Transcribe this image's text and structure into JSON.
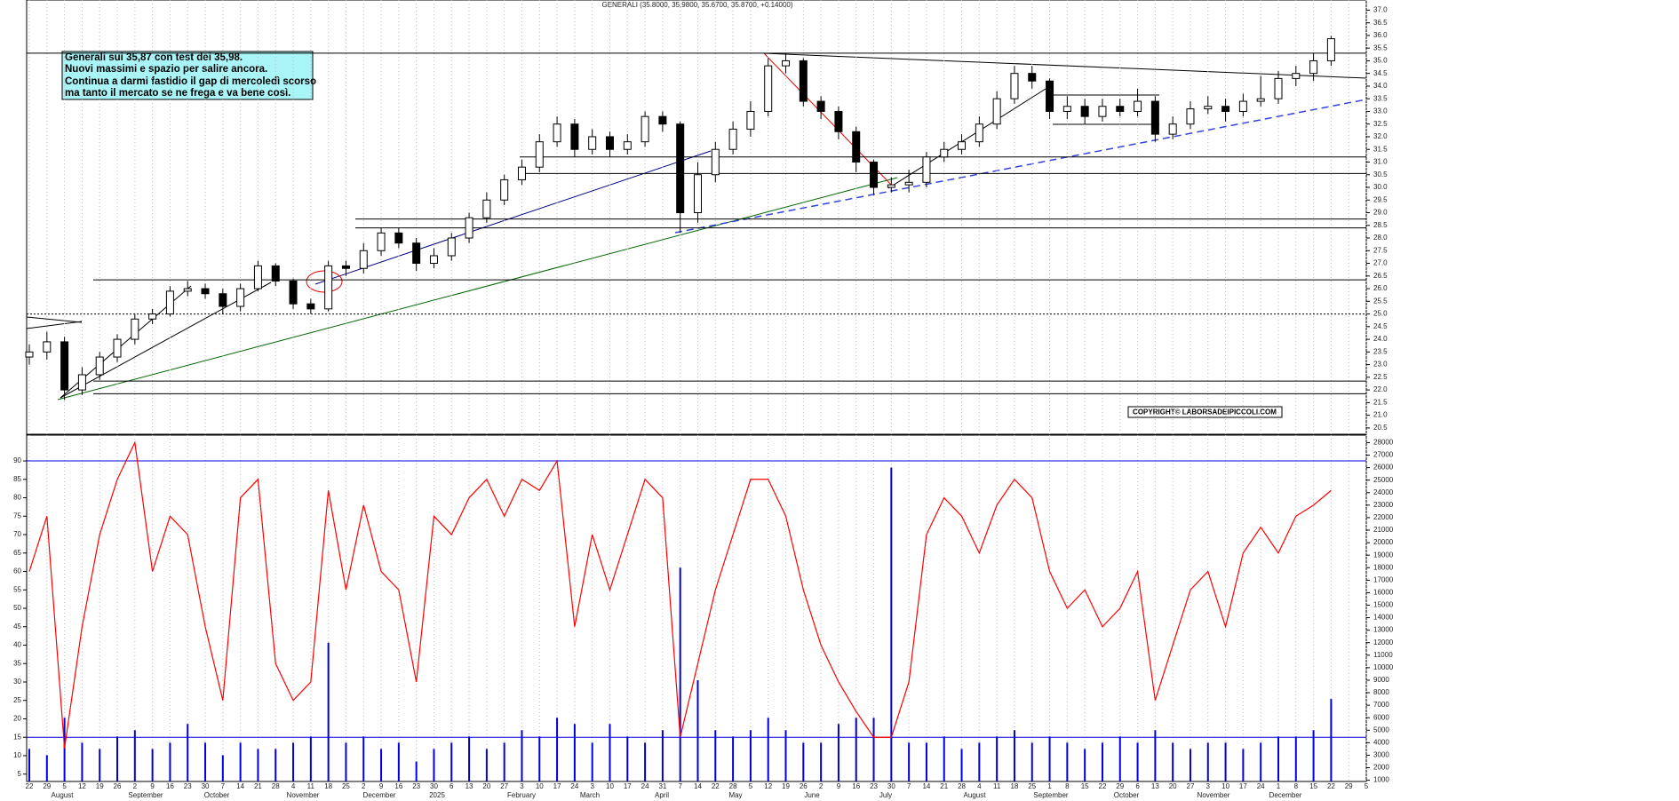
{
  "title": "GENERALI (35.8000, 35.9800, 35.6700, 35.8700, +0.14000)",
  "annotation": [
    "Generali sui 35,87 con test dei 35,98.",
    "Nuovi massimi e spazio per salire ancora.",
    "Continua a darmi fastidio il gap di mercoledì scorso",
    "ma tanto il mercato se ne frega e  va bene così."
  ],
  "copyright": "COPYRIGHT© LABORSADEIPICCOLI.COM",
  "chart_data": [
    {
      "type": "candlestick",
      "color": "#000000",
      "open": [
        23.3,
        23.5,
        23.9,
        22.0,
        22.6,
        23.3,
        24.0,
        24.8,
        25.0,
        25.9,
        26.0,
        25.8,
        25.3,
        26.0,
        26.9,
        26.3,
        25.4,
        25.2,
        26.9,
        26.8,
        27.5,
        28.2,
        27.8,
        27.0,
        27.3,
        28.0,
        28.8,
        29.5,
        30.3,
        30.8,
        31.8,
        32.5,
        31.5,
        32.0,
        31.5,
        31.8,
        32.8,
        32.5,
        29.0,
        30.5,
        31.5,
        32.3,
        33.0,
        34.8,
        35.0,
        33.4,
        33.0,
        32.2,
        31.0,
        30.0,
        30.1,
        30.2,
        31.2,
        31.5,
        31.8,
        32.5,
        33.5,
        34.5,
        34.2,
        33.0,
        33.2,
        32.8,
        33.2,
        33.0,
        33.4,
        32.1,
        32.5,
        33.1,
        33.2,
        33.0,
        33.4,
        33.5,
        34.3,
        34.5,
        35.0,
        null,
        null
      ],
      "high": [
        23.8,
        24.3,
        24.1,
        22.9,
        23.5,
        24.2,
        25.0,
        25.2,
        26.1,
        26.3,
        26.2,
        26.0,
        26.2,
        27.1,
        27.0,
        26.4,
        25.6,
        27.1,
        27.1,
        27.8,
        28.4,
        28.4,
        28.0,
        27.6,
        28.2,
        29.0,
        29.8,
        30.5,
        31.1,
        32.1,
        32.8,
        32.7,
        32.3,
        32.2,
        32.1,
        33.0,
        33.0,
        32.6,
        31.0,
        31.8,
        32.6,
        33.4,
        35.1,
        35.3,
        35.1,
        33.6,
        33.2,
        32.4,
        31.1,
        30.4,
        30.7,
        31.4,
        31.8,
        32.1,
        32.8,
        33.8,
        34.8,
        34.8,
        34.3,
        33.6,
        33.5,
        33.5,
        33.5,
        33.9,
        33.6,
        32.8,
        33.4,
        33.6,
        33.5,
        33.7,
        34.4,
        34.6,
        34.8,
        35.3,
        35.98,
        null,
        null
      ],
      "low": [
        23.0,
        23.2,
        21.6,
        21.8,
        22.4,
        23.1,
        23.8,
        24.6,
        24.9,
        25.7,
        25.6,
        25.0,
        25.1,
        25.9,
        26.1,
        25.2,
        25.0,
        25.1,
        26.5,
        26.6,
        27.3,
        27.6,
        26.7,
        26.8,
        27.1,
        27.8,
        28.6,
        29.3,
        30.1,
        30.6,
        31.6,
        31.2,
        31.3,
        31.2,
        31.3,
        31.6,
        32.2,
        28.2,
        28.6,
        30.2,
        31.3,
        32.0,
        32.8,
        34.5,
        33.2,
        32.7,
        31.9,
        30.6,
        29.7,
        29.8,
        29.8,
        30.0,
        31.0,
        31.3,
        31.6,
        32.3,
        33.3,
        33.9,
        32.7,
        32.7,
        32.5,
        32.6,
        32.8,
        32.8,
        31.8,
        31.9,
        32.3,
        32.9,
        32.6,
        32.8,
        33.2,
        33.3,
        34.0,
        34.2,
        34.8,
        null,
        null
      ],
      "close": [
        23.5,
        23.9,
        22.0,
        22.6,
        23.3,
        24.0,
        24.8,
        25.0,
        25.9,
        26.0,
        25.8,
        25.3,
        26.0,
        26.9,
        26.3,
        25.4,
        25.2,
        26.9,
        26.8,
        27.5,
        28.2,
        27.8,
        27.0,
        27.3,
        28.0,
        28.8,
        29.5,
        30.3,
        30.8,
        31.8,
        32.5,
        31.5,
        32.0,
        31.5,
        31.8,
        32.8,
        32.5,
        29.0,
        30.5,
        31.5,
        32.3,
        33.0,
        34.8,
        35.0,
        33.4,
        33.0,
        32.2,
        31.0,
        30.0,
        30.1,
        30.2,
        31.2,
        31.5,
        31.8,
        32.5,
        33.5,
        34.5,
        34.2,
        33.0,
        33.2,
        32.8,
        33.2,
        33.0,
        33.4,
        32.1,
        32.5,
        33.1,
        33.2,
        33.0,
        33.4,
        33.5,
        34.3,
        34.5,
        35.0,
        35.87,
        null,
        null
      ],
      "ylim": [
        20.25,
        37.4
      ],
      "yticks": [
        {
          "value": 20.5,
          "label": "20.5"
        },
        {
          "value": 21,
          "label": "21.0"
        },
        {
          "value": 21.5,
          "label": "21.5"
        },
        {
          "value": 22,
          "label": "22.0"
        },
        {
          "value": 22.5,
          "label": "22.5"
        },
        {
          "value": 23,
          "label": "23.0"
        },
        {
          "value": 23.5,
          "label": "23.5"
        },
        {
          "value": 24,
          "label": "24.0"
        },
        {
          "value": 24.5,
          "label": "24.5"
        },
        {
          "value": 25,
          "label": "25.0"
        },
        {
          "value": 25.5,
          "label": "25.5"
        },
        {
          "value": 26,
          "label": "26.0"
        },
        {
          "value": 26.5,
          "label": "26.5"
        },
        {
          "value": 27,
          "label": "27.0"
        },
        {
          "value": 27.5,
          "label": "27.5"
        },
        {
          "value": 28,
          "label": "28.0"
        },
        {
          "value": 28.5,
          "label": "28.5"
        },
        {
          "value": 29,
          "label": "29.0"
        },
        {
          "value": 29.5,
          "label": "29.5"
        },
        {
          "value": 30,
          "label": "30.0"
        },
        {
          "value": 30.5,
          "label": "30.5"
        },
        {
          "value": 31,
          "label": "31.0"
        },
        {
          "value": 31.5,
          "label": "31.5"
        },
        {
          "value": 32,
          "label": "32.0"
        },
        {
          "value": 32.5,
          "label": "32.5"
        },
        {
          "value": 33,
          "label": "33.0"
        },
        {
          "value": 33.5,
          "label": "33.5"
        },
        {
          "value": 34,
          "label": "34.0"
        },
        {
          "value": 34.5,
          "label": "34.5"
        },
        {
          "value": 35,
          "label": "35.0"
        },
        {
          "value": 35.5,
          "label": "35.5"
        },
        {
          "value": 36,
          "label": "36.0"
        },
        {
          "value": 36.5,
          "label": "36.5"
        },
        {
          "value": 37,
          "label": "37.0"
        }
      ],
      "levels": [
        35.3,
        31.2,
        30.55,
        28.75,
        28.4,
        26.35,
        22.35,
        21.85
      ],
      "dotted_levels": [
        25
      ]
    },
    {
      "type": "line",
      "series": [
        {
          "color": "#ff0000",
          "values": [
            60,
            75,
            12,
            45,
            70,
            85,
            95,
            60,
            75,
            70,
            45,
            25,
            80,
            85,
            35,
            25,
            30,
            82,
            55,
            78,
            60,
            55,
            30,
            75,
            70,
            80,
            85,
            75,
            85,
            82,
            90,
            45,
            70,
            55,
            70,
            85,
            80,
            15,
            35,
            55,
            70,
            85,
            85,
            75,
            55,
            40,
            30,
            22,
            15,
            15,
            30,
            70,
            80,
            75,
            65,
            78,
            85,
            80,
            60,
            50,
            55,
            45,
            50,
            60,
            25,
            40,
            55,
            60,
            45,
            65,
            72,
            65,
            75,
            78,
            82,
            null,
            null
          ]
        },
        {
          "color": "#0000dd",
          "type": "bar",
          "axis": "y2",
          "values": [
            3500,
            3000,
            6000,
            4000,
            3500,
            4500,
            5000,
            3500,
            4000,
            5500,
            4000,
            3000,
            4000,
            3500,
            3500,
            4000,
            4500,
            12000,
            4000,
            4500,
            3500,
            4000,
            2500,
            3500,
            4000,
            4500,
            3500,
            4000,
            5000,
            4500,
            6000,
            5500,
            4000,
            5500,
            4500,
            4000,
            5000,
            18000,
            9000,
            5000,
            4500,
            5000,
            6000,
            5000,
            4000,
            4000,
            5500,
            6000,
            6000,
            26000,
            4000,
            4000,
            4500,
            3500,
            4000,
            4500,
            5000,
            4000,
            4500,
            4000,
            3500,
            4000,
            4500,
            4000,
            5000,
            4000,
            3500,
            4000,
            4000,
            3500,
            4000,
            4500,
            4500,
            5000,
            7500,
            null,
            null
          ]
        }
      ],
      "ylim": [
        3,
        97
      ],
      "yticks": [
        5,
        10,
        15,
        20,
        25,
        30,
        35,
        40,
        45,
        50,
        55,
        60,
        65,
        70,
        75,
        80,
        85,
        90
      ],
      "y2lim": [
        900,
        28600
      ],
      "y2ticks": [
        1000,
        2000,
        3000,
        4000,
        5000,
        6000,
        7000,
        8000,
        9000,
        10000,
        11000,
        12000,
        13000,
        14000,
        15000,
        16000,
        17000,
        18000,
        19000,
        20000,
        21000,
        22000,
        23000,
        24000,
        25000,
        26000,
        27000,
        28000
      ],
      "hlines": [
        90,
        15
      ],
      "day_labels": [
        "22",
        "29",
        "5",
        "12",
        "19",
        "26",
        "2",
        "9",
        "16",
        "23",
        "30",
        "7",
        "14",
        "21",
        "28",
        "4",
        "11",
        "18",
        "25",
        "2",
        "9",
        "16",
        "23",
        "30",
        "6",
        "13",
        "20",
        "27",
        "3",
        "10",
        "17",
        "24",
        "3",
        "10",
        "17",
        "24",
        "31",
        "7",
        "14",
        "22",
        "28",
        "5",
        "12",
        "19",
        "26",
        "2",
        "9",
        "16",
        "23",
        "30",
        "7",
        "14",
        "21",
        "28",
        "4",
        "11",
        "18",
        "25",
        "1",
        "8",
        "15",
        "22",
        "29",
        "6",
        "13",
        "20",
        "27",
        "3",
        "10",
        "17",
        "24",
        "1",
        "8",
        "15",
        "22",
        "29",
        "5"
      ],
      "month_labels": [
        "August",
        "September",
        "October",
        "November",
        "December",
        "2025",
        "February",
        "March",
        "April",
        "May",
        "June",
        "July",
        "August",
        "September",
        "October",
        "November",
        "December"
      ]
    }
  ]
}
